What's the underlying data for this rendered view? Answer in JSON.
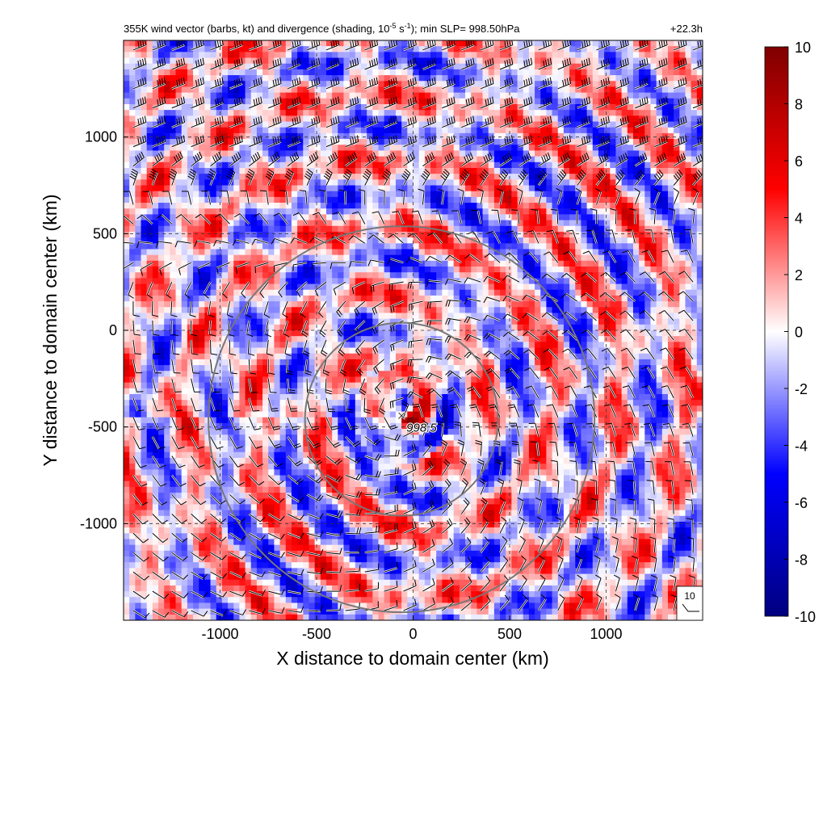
{
  "chart_data": {
    "type": "heatmap",
    "title": "355K wind vector (barbs, kt) and divergence (shading, 10",
    "title_exp1": "-5",
    "title_mid": " s",
    "title_exp2": "-1",
    "title_end": "); min SLP= 998.50hPa",
    "time_label": "+22.3h",
    "xlabel": "X distance to domain center (km)",
    "ylabel": "Y distance to domain center (km)",
    "xlim": [
      -1500,
      1500
    ],
    "ylim": [
      -1500,
      1500
    ],
    "xticks": [
      -1000,
      -500,
      0,
      500,
      1000
    ],
    "yticks": [
      1000,
      500,
      0,
      -500,
      -1000
    ],
    "grid": true,
    "colorbar": {
      "range": [
        -10,
        10
      ],
      "ticks": [
        10,
        8,
        6,
        4,
        2,
        0,
        -2,
        -4,
        -6,
        -8,
        -10
      ],
      "colors": [
        "#00007f",
        "#0000ff",
        "#ffffff",
        "#ff0000",
        "#7f0000"
      ]
    },
    "center_marker": {
      "symbol": "×",
      "label": "998.5",
      "x": -60,
      "y": -440
    },
    "range_rings": {
      "center": [
        -60,
        -460
      ],
      "radii_km": [
        500,
        1000
      ]
    },
    "reference_barb": {
      "label": "10",
      "units": "kt"
    }
  }
}
